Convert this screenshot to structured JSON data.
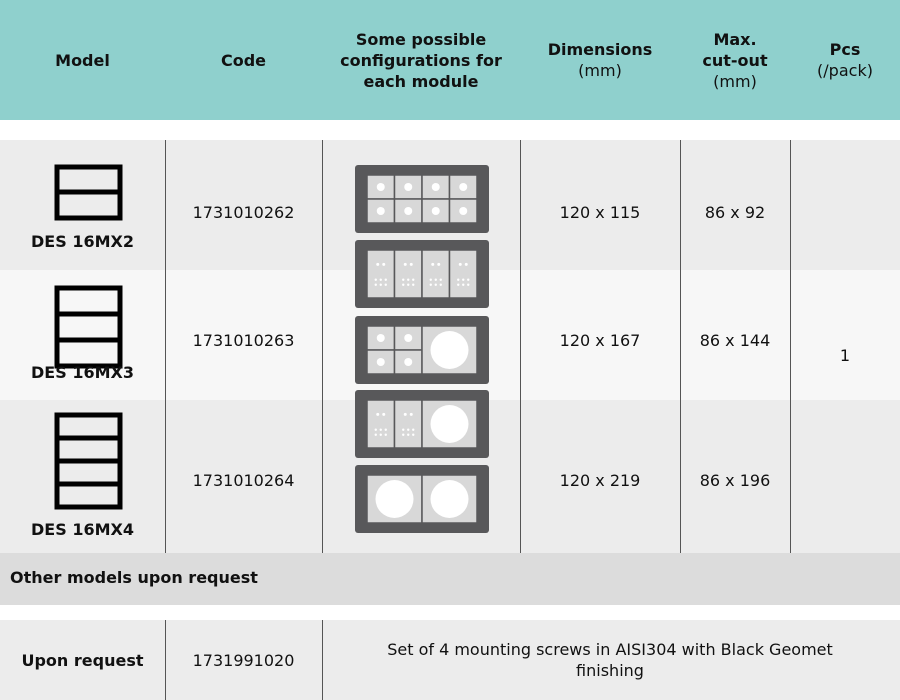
{
  "header": {
    "columns": [
      {
        "title": "Model"
      },
      {
        "title": "Code"
      },
      {
        "title": "Some possible configurations for each module"
      },
      {
        "title": "Dimensions",
        "unit": "(mm)"
      },
      {
        "title": "Max. cut-out",
        "unit": "(mm)"
      },
      {
        "title": "Pcs",
        "unit": "(/pack)"
      }
    ]
  },
  "rows": [
    {
      "model": "DES 16MX2",
      "code": "1731010262",
      "dimensions": "120 x 115",
      "cutout": "86 x 92"
    },
    {
      "model": "DES 16MX3",
      "code": "1731010263",
      "dimensions": "120 x 167",
      "cutout": "86 x 144"
    },
    {
      "model": "DES 16MX4",
      "code": "1731010264",
      "dimensions": "120 x 219",
      "cutout": "86 x 196"
    }
  ],
  "pcs": "1",
  "other": "Other models upon request",
  "accessory": {
    "availability": "Upon request",
    "code": "1731991020",
    "description": "Set of 4 mounting screws in AISI304 with Black Geomet finishing"
  }
}
